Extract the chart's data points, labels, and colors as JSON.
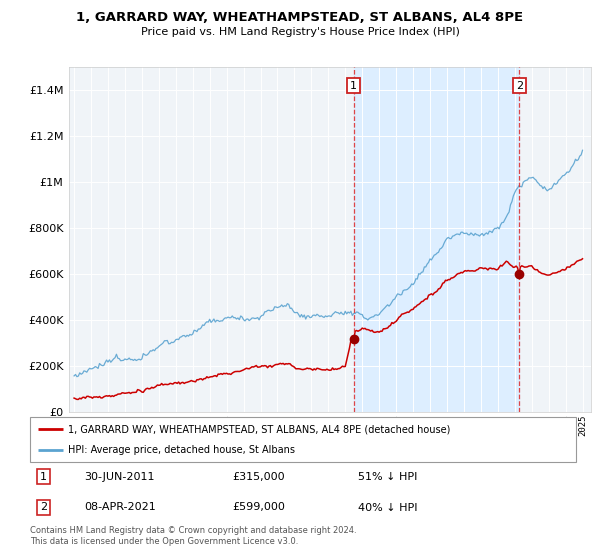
{
  "title": "1, GARRARD WAY, WHEATHAMPSTEAD, ST ALBANS, AL4 8PE",
  "subtitle": "Price paid vs. HM Land Registry's House Price Index (HPI)",
  "legend_line1": "1, GARRARD WAY, WHEATHAMPSTEAD, ST ALBANS, AL4 8PE (detached house)",
  "legend_line2": "HPI: Average price, detached house, St Albans",
  "footnote": "Contains HM Land Registry data © Crown copyright and database right 2024.\nThis data is licensed under the Open Government Licence v3.0.",
  "sale1": {
    "date": "30-JUN-2011",
    "price": 315000,
    "label": "1",
    "year": 2011.5
  },
  "sale2": {
    "date": "08-APR-2021",
    "price": 599000,
    "label": "2",
    "year": 2021.27
  },
  "hpi_color": "#5ba3d0",
  "price_color": "#cc0000",
  "sale_dot_color": "#990000",
  "vline_color": "#dd3333",
  "highlight_color": "#ddeeff",
  "background_color": "#f0f4f8",
  "grid_color": "#cccccc",
  "ylim": [
    0,
    1500000
  ],
  "xlim_start": 1994.7,
  "xlim_end": 2025.5
}
